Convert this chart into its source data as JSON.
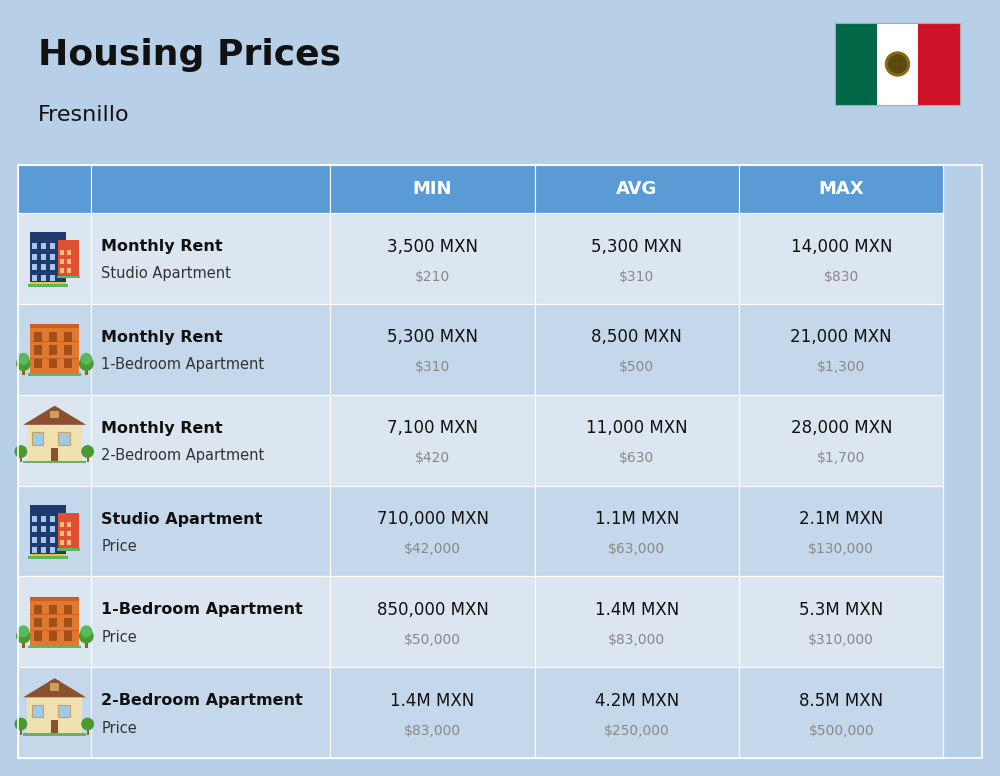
{
  "title": "Housing Prices",
  "subtitle": "Fresnillo",
  "background_color": "#b8cfe8",
  "header_bg_color": "#5b9bd5",
  "header_text_color": "#ffffff",
  "row_bg_color_1": "#dce6f1",
  "row_bg_color_2": "#c5d8eb",
  "rows": [
    {
      "type": "studio_rent",
      "bold_label": "Monthly Rent",
      "sub_label": "Studio Apartment",
      "min_main": "3,500 MXN",
      "min_sub": "$210",
      "avg_main": "5,300 MXN",
      "avg_sub": "$310",
      "max_main": "14,000 MXN",
      "max_sub": "$830"
    },
    {
      "type": "apt1_rent",
      "bold_label": "Monthly Rent",
      "sub_label": "1-Bedroom Apartment",
      "min_main": "5,300 MXN",
      "min_sub": "$310",
      "avg_main": "8,500 MXN",
      "avg_sub": "$500",
      "max_main": "21,000 MXN",
      "max_sub": "$1,300"
    },
    {
      "type": "apt2_rent",
      "bold_label": "Monthly Rent",
      "sub_label": "2-Bedroom Apartment",
      "min_main": "7,100 MXN",
      "min_sub": "$420",
      "avg_main": "11,000 MXN",
      "avg_sub": "$630",
      "max_main": "28,000 MXN",
      "max_sub": "$1,700"
    },
    {
      "type": "studio_price",
      "bold_label": "Studio Apartment",
      "sub_label": "Price",
      "min_main": "710,000 MXN",
      "min_sub": "$42,000",
      "avg_main": "1.1M MXN",
      "avg_sub": "$63,000",
      "max_main": "2.1M MXN",
      "max_sub": "$130,000"
    },
    {
      "type": "apt1_price",
      "bold_label": "1-Bedroom Apartment",
      "sub_label": "Price",
      "min_main": "850,000 MXN",
      "min_sub": "$50,000",
      "avg_main": "1.4M MXN",
      "avg_sub": "$83,000",
      "max_main": "5.3M MXN",
      "max_sub": "$310,000"
    },
    {
      "type": "apt2_price",
      "bold_label": "2-Bedroom Apartment",
      "sub_label": "Price",
      "min_main": "1.4M MXN",
      "min_sub": "$83,000",
      "avg_main": "4.2M MXN",
      "avg_sub": "$250,000",
      "max_main": "8.5M MXN",
      "max_sub": "$500,000"
    }
  ]
}
